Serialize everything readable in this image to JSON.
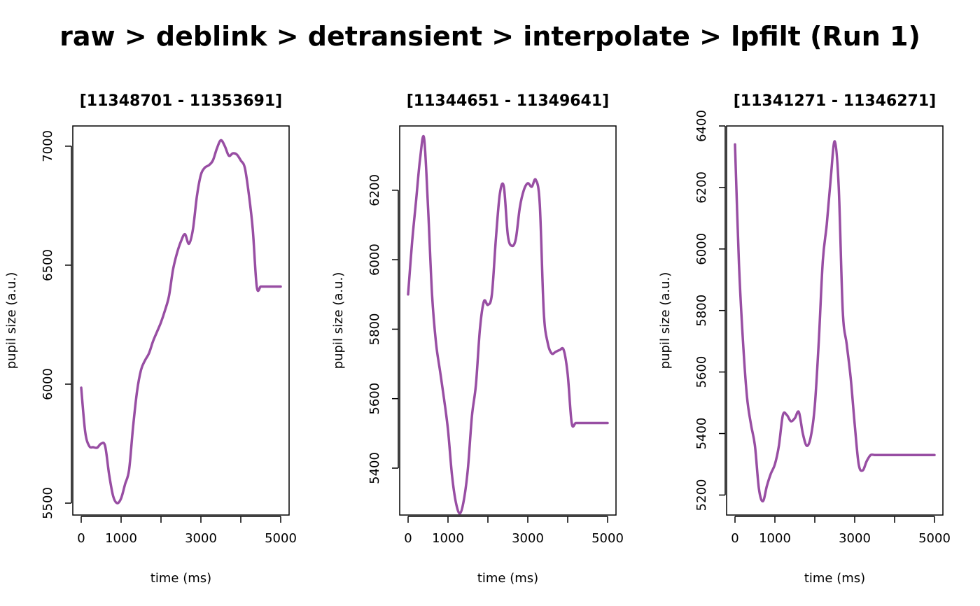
{
  "title": "raw > deblink > detransient > interpolate > lpfilt (Run 1)",
  "colors": {
    "line": "#984ea3",
    "axis": "#000000"
  },
  "chart_data": [
    {
      "type": "line",
      "title": "[11348701 - 11353691]",
      "xlabel": "time (ms)",
      "ylabel": "pupil size (a.u.)",
      "xlim": [
        0,
        5000
      ],
      "ylim": [
        5450,
        7085
      ],
      "xticks": [
        0,
        1000,
        2000,
        3000,
        4000,
        5000
      ],
      "xtick_labels": [
        "0",
        "1000",
        "",
        "3000",
        "",
        "5000"
      ],
      "yticks": [
        5500,
        6000,
        6500,
        7000
      ],
      "ytick_labels": [
        "5500",
        "6000",
        "6500",
        "7000"
      ],
      "series": [
        {
          "x": [
            0,
            100,
            200,
            300,
            400,
            500,
            600,
            700,
            800,
            900,
            1000,
            1100,
            1200,
            1300,
            1400,
            1500,
            1600,
            1700,
            1800,
            1900,
            2000,
            2100,
            2200,
            2300,
            2400,
            2500,
            2600,
            2700,
            2800,
            2900,
            3000,
            3100,
            3200,
            3300,
            3400,
            3500,
            3600,
            3700,
            3800,
            3900,
            4000,
            4100,
            4200,
            4300,
            4400,
            4500,
            4600,
            4700,
            4800,
            4900,
            5000
          ],
          "y": [
            5985,
            5800,
            5740,
            5735,
            5733,
            5750,
            5740,
            5620,
            5530,
            5500,
            5520,
            5580,
            5640,
            5820,
            5970,
            6060,
            6100,
            6130,
            6180,
            6220,
            6260,
            6310,
            6370,
            6480,
            6550,
            6600,
            6630,
            6590,
            6650,
            6790,
            6880,
            6910,
            6920,
            6940,
            6990,
            7025,
            7000,
            6960,
            6970,
            6965,
            6940,
            6910,
            6800,
            6650,
            6410,
            6410,
            6410,
            6410,
            6410,
            6410,
            6410
          ]
        }
      ]
    },
    {
      "type": "line",
      "title": "[11344651 - 11349641]",
      "xlabel": "time (ms)",
      "ylabel": "pupil size (a.u.)",
      "xlim": [
        0,
        5000
      ],
      "ylim": [
        5265,
        6385
      ],
      "xticks": [
        0,
        1000,
        2000,
        3000,
        4000,
        5000
      ],
      "xtick_labels": [
        "0",
        "1000",
        "",
        "3000",
        "",
        "5000"
      ],
      "yticks": [
        5400,
        5600,
        5800,
        6000,
        6200
      ],
      "ytick_labels": [
        "5400",
        "5600",
        "5800",
        "6000",
        "6200"
      ],
      "series": [
        {
          "x": [
            0,
            100,
            200,
            300,
            400,
            500,
            600,
            700,
            800,
            900,
            1000,
            1100,
            1200,
            1300,
            1400,
            1500,
            1600,
            1700,
            1800,
            1900,
            2000,
            2100,
            2200,
            2300,
            2400,
            2500,
            2600,
            2700,
            2800,
            2900,
            3000,
            3100,
            3200,
            3300,
            3400,
            3500,
            3600,
            3700,
            3800,
            3900,
            4000,
            4100,
            4200,
            4300,
            4400,
            4500,
            4600,
            4700,
            4800,
            4900,
            5000
          ],
          "y": [
            5900,
            6050,
            6170,
            6290,
            6350,
            6150,
            5900,
            5760,
            5680,
            5600,
            5510,
            5380,
            5300,
            5270,
            5310,
            5400,
            5550,
            5640,
            5800,
            5880,
            5870,
            5900,
            6060,
            6190,
            6210,
            6070,
            6040,
            6060,
            6150,
            6200,
            6220,
            6210,
            6230,
            6160,
            5850,
            5760,
            5730,
            5735,
            5740,
            5740,
            5670,
            5530,
            5530,
            5530,
            5530,
            5530,
            5530,
            5530,
            5530,
            5530,
            5530
          ]
        }
      ]
    },
    {
      "type": "line",
      "title": "[11341271 - 11346271]",
      "xlabel": "time (ms)",
      "ylabel": "pupil size (a.u.)",
      "xlim": [
        0,
        5000
      ],
      "ylim": [
        5135,
        6400
      ],
      "xticks": [
        0,
        1000,
        2000,
        3000,
        4000,
        5000
      ],
      "xtick_labels": [
        "0",
        "1000",
        "",
        "3000",
        "",
        "5000"
      ],
      "yticks": [
        5200,
        5400,
        5600,
        5800,
        6000,
        6200,
        6400
      ],
      "ytick_labels": [
        "5200",
        "5400",
        "5600",
        "5800",
        "6000",
        "6200",
        "6400"
      ],
      "series": [
        {
          "x": [
            0,
            100,
            200,
            300,
            400,
            500,
            600,
            700,
            800,
            900,
            1000,
            1100,
            1200,
            1300,
            1400,
            1500,
            1600,
            1700,
            1800,
            1900,
            2000,
            2100,
            2200,
            2300,
            2400,
            2500,
            2600,
            2700,
            2800,
            2900,
            3000,
            3100,
            3200,
            3300,
            3400,
            3500,
            3600,
            3700,
            3800,
            3900,
            4000,
            4100,
            4200,
            4300,
            4400,
            4500,
            4600,
            4700,
            4800,
            4900,
            5000
          ],
          "y": [
            6340,
            5950,
            5700,
            5520,
            5430,
            5360,
            5220,
            5180,
            5230,
            5270,
            5300,
            5360,
            5460,
            5460,
            5440,
            5450,
            5470,
            5400,
            5360,
            5390,
            5490,
            5700,
            5960,
            6080,
            6230,
            6350,
            6200,
            5800,
            5690,
            5580,
            5430,
            5300,
            5280,
            5310,
            5330,
            5330,
            5330,
            5330,
            5330,
            5330,
            5330,
            5330,
            5330,
            5330,
            5330,
            5330,
            5330,
            5330,
            5330,
            5330,
            5330
          ]
        }
      ]
    }
  ]
}
